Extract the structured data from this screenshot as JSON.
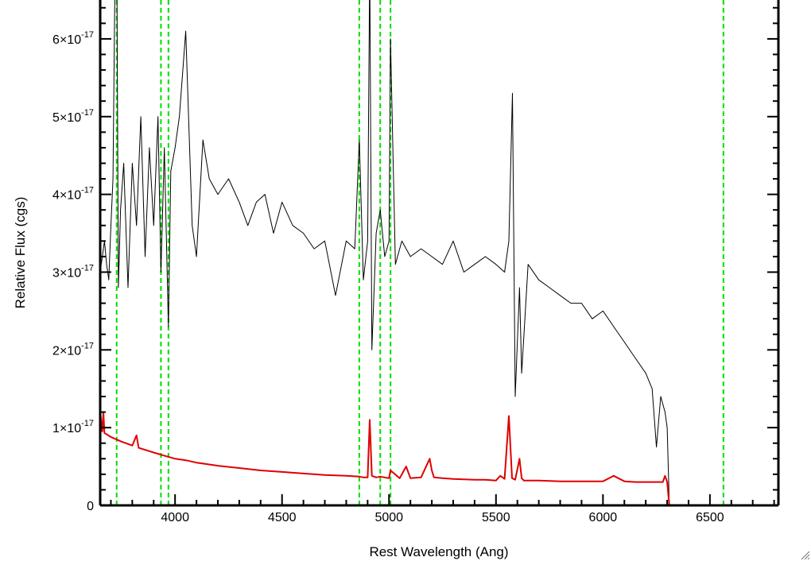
{
  "chart_data": {
    "type": "line",
    "title": "",
    "xlabel": "Rest Wavelength (Ang)",
    "ylabel": "Relative Flux (cgs)",
    "xlim": [
      3650,
      6820
    ],
    "ylim": [
      0,
      6.5e-17
    ],
    "x_ticks": [
      4000,
      4500,
      5000,
      5500,
      6000,
      6500
    ],
    "y_ticks": [
      {
        "value": 0,
        "mantissa": "0",
        "exponent": ""
      },
      {
        "value": 1e-17,
        "mantissa": "1×10",
        "exponent": "-17"
      },
      {
        "value": 2e-17,
        "mantissa": "2×10",
        "exponent": "-17"
      },
      {
        "value": 3e-17,
        "mantissa": "3×10",
        "exponent": "-17"
      },
      {
        "value": 4e-17,
        "mantissa": "4×10",
        "exponent": "-17"
      },
      {
        "value": 5e-17,
        "mantissa": "5×10",
        "exponent": "-17"
      },
      {
        "value": 6e-17,
        "mantissa": "6×10",
        "exponent": "-17"
      }
    ],
    "grid": false,
    "legend": "none",
    "vertical_markers": {
      "color": "#00e000",
      "style": "dashed",
      "x": [
        3727,
        3934,
        3969,
        4861,
        4959,
        5007,
        6563
      ]
    },
    "series": [
      {
        "color": "#000000",
        "x": [
          3650,
          3660,
          3670,
          3680,
          3690,
          3700,
          3710,
          3720,
          3727,
          3735,
          3745,
          3760,
          3780,
          3800,
          3820,
          3840,
          3860,
          3880,
          3900,
          3920,
          3934,
          3950,
          3969,
          3980,
          4000,
          4020,
          4050,
          4080,
          4100,
          4130,
          4160,
          4200,
          4250,
          4300,
          4340,
          4380,
          4420,
          4460,
          4500,
          4550,
          4600,
          4650,
          4700,
          4750,
          4800,
          4840,
          4861,
          4880,
          4900,
          4910,
          4920,
          4940,
          4959,
          4980,
          5000,
          5007,
          5030,
          5060,
          5100,
          5150,
          5200,
          5250,
          5300,
          5350,
          5400,
          5450,
          5500,
          5540,
          5560,
          5577,
          5590,
          5610,
          5620,
          5650,
          5700,
          5750,
          5800,
          5850,
          5900,
          5950,
          6000,
          6050,
          6100,
          6150,
          6200,
          6230,
          6250,
          6270,
          6290,
          6300,
          6310,
          6400,
          6500,
          6600,
          6700,
          6820
        ],
        "y": [
          3e-17,
          3.2e-17,
          3.4e-17,
          3.1e-17,
          2.9e-17,
          3.6e-17,
          4.2e-17,
          7e-17,
          7.5e-17,
          2.8e-17,
          3.8e-17,
          4.4e-17,
          2.8e-17,
          4.4e-17,
          3.6e-17,
          5e-17,
          3.2e-17,
          4.6e-17,
          3.6e-17,
          5e-17,
          3e-17,
          4.6e-17,
          2.3e-17,
          4.3e-17,
          4.6e-17,
          5e-17,
          6.1e-17,
          3.6e-17,
          3.2e-17,
          4.7e-17,
          4.2e-17,
          4e-17,
          4.2e-17,
          3.9e-17,
          3.6e-17,
          3.9e-17,
          4e-17,
          3.5e-17,
          3.9e-17,
          3.6e-17,
          3.5e-17,
          3.3e-17,
          3.4e-17,
          2.7e-17,
          3.4e-17,
          3.3e-17,
          4.7e-17,
          2.9e-17,
          3.4e-17,
          7e-17,
          2e-17,
          3.5e-17,
          3.8e-17,
          3.2e-17,
          3.4e-17,
          6e-17,
          3.1e-17,
          3.4e-17,
          3.2e-17,
          3.3e-17,
          3.2e-17,
          3.1e-17,
          3.4e-17,
          3e-17,
          3.1e-17,
          3.2e-17,
          3.1e-17,
          3e-17,
          3.4e-17,
          5.3e-17,
          1.4e-17,
          2.8e-17,
          1.7e-17,
          3.1e-17,
          2.9e-17,
          2.8e-17,
          2.7e-17,
          2.6e-17,
          2.6e-17,
          2.4e-17,
          2.5e-17,
          2.3e-17,
          2.1e-17,
          1.9e-17,
          1.7e-17,
          1.5e-17,
          7.5e-18,
          1.4e-17,
          1.2e-17,
          1e-17,
          0.0,
          0.0,
          0.0,
          0.0,
          0.0,
          0.0
        ]
      },
      {
        "color": "#e00000",
        "x": [
          3650,
          3660,
          3665,
          3670,
          3700,
          3750,
          3800,
          3820,
          3830,
          3900,
          3950,
          4000,
          4050,
          4100,
          4150,
          4200,
          4300,
          4400,
          4500,
          4600,
          4700,
          4800,
          4861,
          4880,
          4900,
          4910,
          4920,
          4940,
          4959,
          5000,
          5007,
          5050,
          5080,
          5100,
          5150,
          5190,
          5200,
          5210,
          5250,
          5300,
          5400,
          5450,
          5500,
          5520,
          5540,
          5560,
          5575,
          5590,
          5610,
          5620,
          5630,
          5700,
          5800,
          5900,
          6000,
          6050,
          6100,
          6150,
          6200,
          6250,
          6280,
          6290,
          6300,
          6310,
          6500,
          6820
        ],
        "y": [
          1.2e-17,
          9.5e-18,
          1.2e-17,
          9.3e-18,
          8.8e-18,
          8.2e-18,
          7.7e-18,
          9e-18,
          7.4e-18,
          6.8e-18,
          6.4e-18,
          6e-18,
          5.8e-18,
          5.5e-18,
          5.3e-18,
          5.1e-18,
          4.8e-18,
          4.5e-18,
          4.3e-18,
          4.1e-18,
          3.9e-18,
          3.8e-18,
          3.7e-18,
          3.6e-18,
          3.6e-18,
          1.1e-17,
          3.8e-18,
          3.6e-18,
          3.7e-18,
          3.5e-18,
          4.5e-18,
          3.5e-18,
          5e-18,
          3.5e-18,
          3.6e-18,
          6e-18,
          4.5e-18,
          3.6e-18,
          3.5e-18,
          3.4e-18,
          3.3e-18,
          3.3e-18,
          3.2e-18,
          3.8e-18,
          3.4e-18,
          1.15e-17,
          3.5e-18,
          3.3e-18,
          6e-18,
          3.5e-18,
          3.2e-18,
          3.2e-18,
          3.1e-18,
          3.1e-18,
          3.1e-18,
          3.8e-18,
          3.1e-18,
          3e-18,
          3e-18,
          3e-18,
          3e-18,
          3.8e-18,
          3e-18,
          0.0,
          0.0,
          0.0
        ]
      }
    ]
  }
}
